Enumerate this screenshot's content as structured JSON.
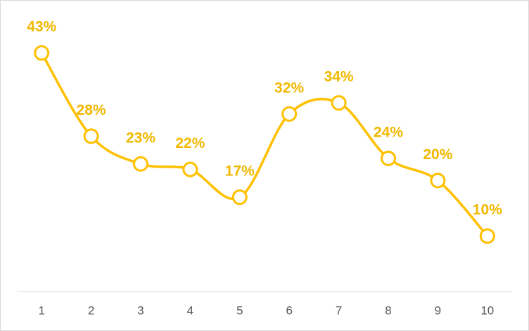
{
  "chart_data": {
    "type": "line",
    "categories": [
      "1",
      "2",
      "3",
      "4",
      "5",
      "6",
      "7",
      "8",
      "9",
      "10"
    ],
    "values": [
      43,
      28,
      23,
      22,
      17,
      32,
      34,
      24,
      20,
      10
    ],
    "value_labels": [
      "43%",
      "28%",
      "23%",
      "22%",
      "17%",
      "32%",
      "34%",
      "24%",
      "20%",
      "10%"
    ],
    "color": "#FFC000",
    "label_color": "#F2B800",
    "ylim": [
      0,
      50
    ],
    "smooth": true
  }
}
